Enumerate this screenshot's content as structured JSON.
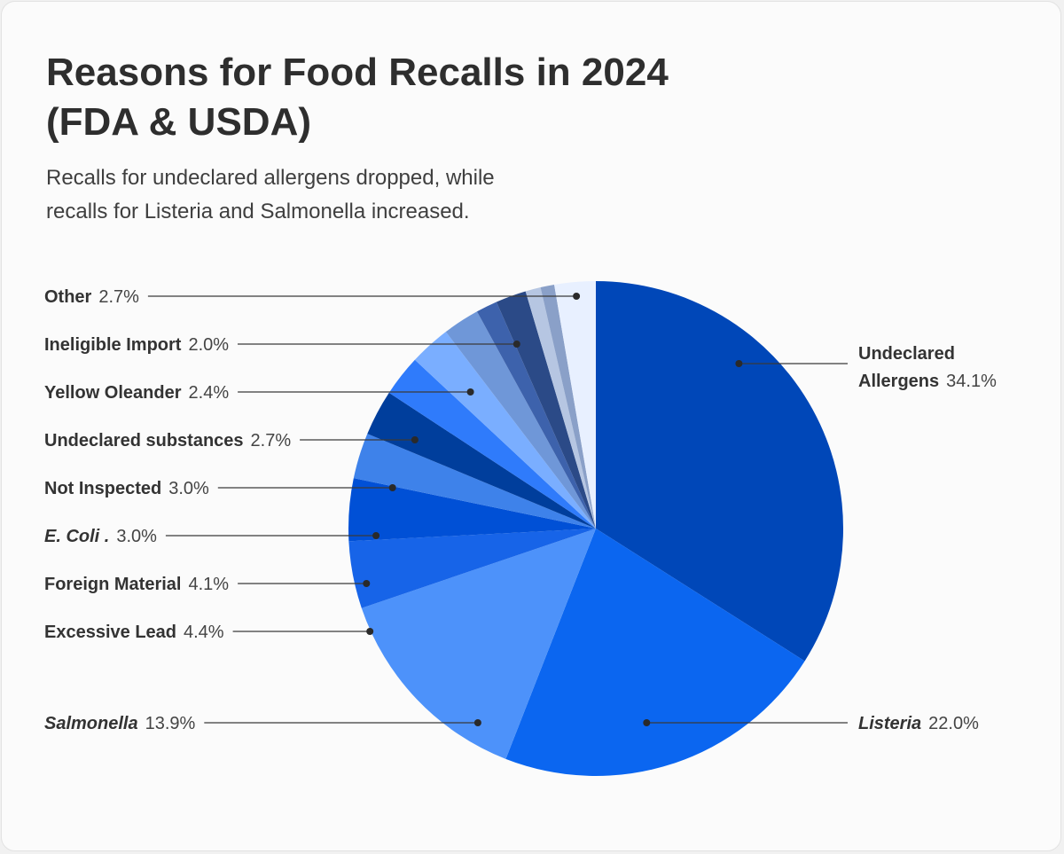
{
  "header": {
    "title_line1": "Reasons for Food Recalls in 2024",
    "title_line2": "(FDA & USDA)",
    "subtitle_line1": "Recalls for undeclared allergens dropped, while",
    "subtitle_line2": "recalls for Listeria and Salmonella increased."
  },
  "chart_data": {
    "type": "pie",
    "title": "Reasons for Food Recalls in 2024 (FDA & USDA)",
    "subtitle": "Recalls for undeclared allergens dropped, while recalls for Listeria and Salmonella increased.",
    "slices": [
      {
        "label": "Undeclared Allergens",
        "value": 34.1,
        "display": "34.1%",
        "color": "#0047b8",
        "italic": false
      },
      {
        "label": "Listeria",
        "value": 22.0,
        "display": "22.0%",
        "color": "#0b66f0",
        "italic": true
      },
      {
        "label": "Salmonella",
        "value": 13.9,
        "display": "13.9%",
        "color": "#4d92fa",
        "italic": true
      },
      {
        "label": "Excessive Lead",
        "value": 4.4,
        "display": "4.4%",
        "color": "#1764e8",
        "italic": false
      },
      {
        "label": "Foreign Material",
        "value": 4.1,
        "display": "4.1%",
        "color": "#0050d6",
        "italic": false
      },
      {
        "label": "E. Coli .",
        "value": 3.0,
        "display": "3.0%",
        "color": "#3e82ea",
        "italic": true
      },
      {
        "label": "Not Inspected",
        "value": 3.0,
        "display": "3.0%",
        "color": "#003e9c",
        "italic": false
      },
      {
        "label": "Undeclared substances",
        "value": 2.7,
        "display": "2.7%",
        "color": "#2f7bfb",
        "italic": false
      },
      {
        "label": "",
        "value": 2.7,
        "display": "",
        "color": "#7aaeff",
        "italic": false
      },
      {
        "label": "Yellow Oleander",
        "value": 2.4,
        "display": "2.4%",
        "color": "#6f97d8",
        "italic": false
      },
      {
        "label": "",
        "value": 1.4,
        "display": "",
        "color": "#3d62ac",
        "italic": false
      },
      {
        "label": "Ineligible Import",
        "value": 2.0,
        "display": "2.0%",
        "color": "#2b4a87",
        "italic": false
      },
      {
        "label": "",
        "value": 1.0,
        "display": "",
        "color": "#b6c6e2",
        "italic": false
      },
      {
        "label": "",
        "value": 0.9,
        "display": "",
        "color": "#8aa0c8",
        "italic": false
      },
      {
        "label": "Other",
        "value": 2.7,
        "display": "2.7%",
        "color": "#e8f0ff",
        "italic": false
      }
    ],
    "start_angle": "12 o'clock",
    "direction": "clockwise",
    "labels": "outside with leader lines",
    "legend": "none"
  }
}
